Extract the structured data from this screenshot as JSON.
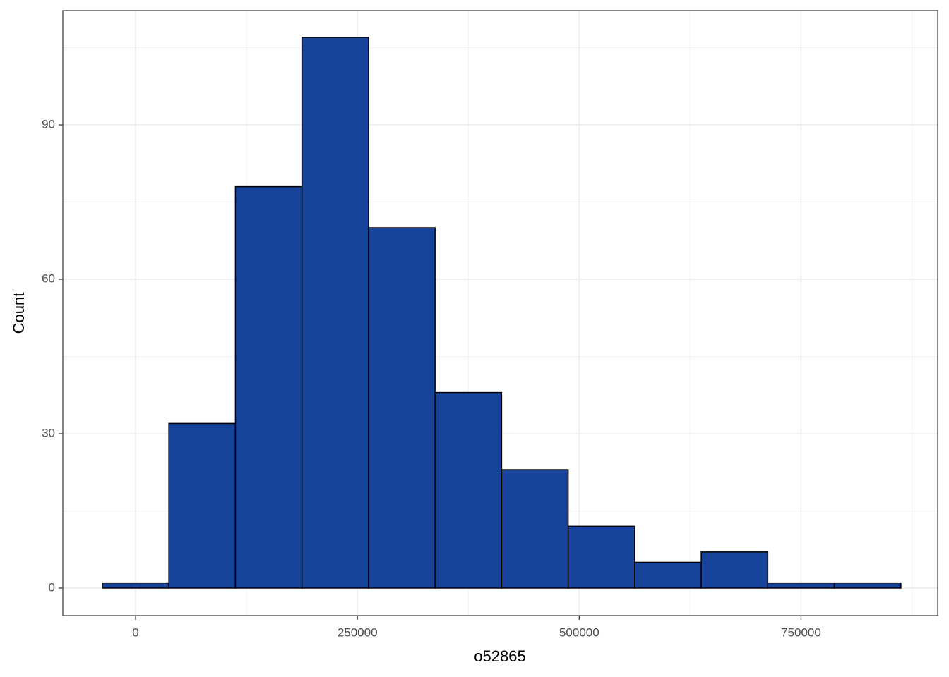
{
  "chart_data": {
    "type": "histogram",
    "x_label": "o52865",
    "y_label": "Count",
    "bins": [
      -37500,
      37500,
      112500,
      187500,
      262500,
      337500,
      412500,
      487500,
      562500,
      637500,
      712500,
      787500,
      862500
    ],
    "values": [
      1,
      32,
      78,
      107,
      70,
      38,
      23,
      12,
      5,
      7,
      1,
      1
    ],
    "color": "#17439a",
    "edge_color": "#000000",
    "xlim": [
      -82000,
      904000
    ],
    "ylim": [
      -5.35,
      112.2
    ],
    "xticks": [
      0,
      250000,
      500000,
      750000
    ],
    "yticks": [
      0,
      30,
      60,
      90
    ],
    "x_minor_ticks": [
      125000,
      375000,
      625000,
      875000
    ],
    "y_minor_ticks": [
      15,
      45,
      75,
      105
    ],
    "grid": true
  }
}
